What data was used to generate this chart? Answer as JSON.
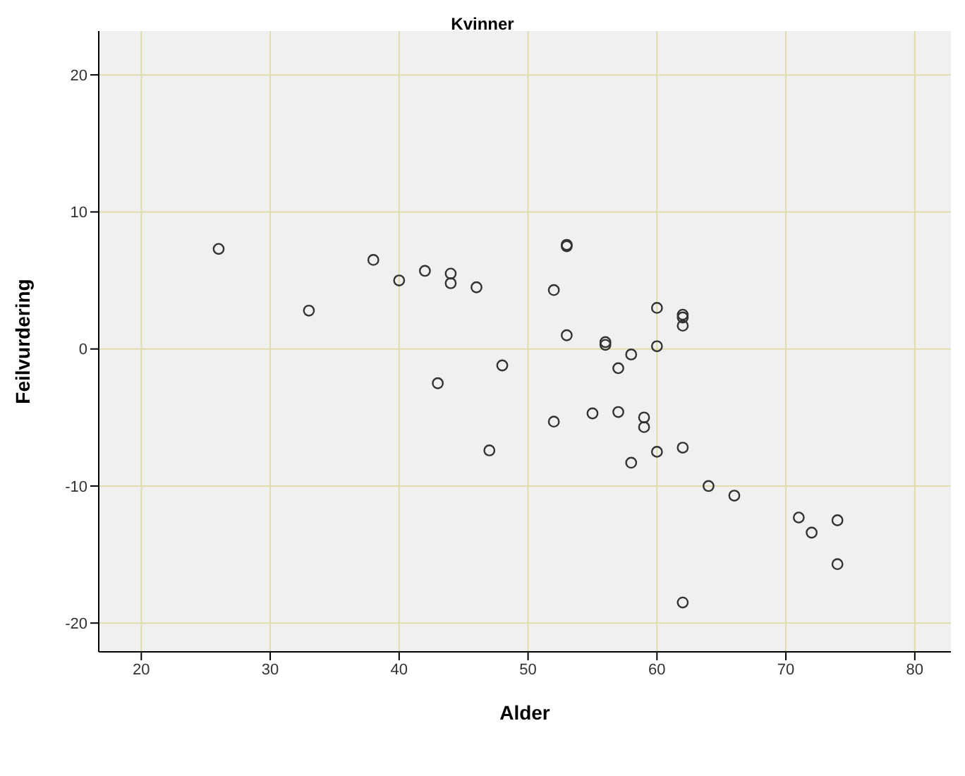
{
  "chart_data": {
    "type": "scatter",
    "title": "Kvinner",
    "xlabel": "Alder",
    "ylabel": "Feilvurdering",
    "x": [
      26,
      33,
      38,
      40,
      42,
      44,
      44,
      46,
      43,
      48,
      47,
      52,
      53,
      53,
      53,
      52,
      55,
      56,
      56,
      57,
      57,
      58,
      59,
      59,
      58,
      60,
      60,
      60,
      62,
      62,
      62,
      62,
      62,
      64,
      66,
      71,
      72,
      74,
      74
    ],
    "values": [
      7.3,
      2.8,
      6.5,
      5.0,
      5.7,
      5.5,
      4.8,
      4.5,
      -2.5,
      -1.2,
      -7.4,
      4.3,
      7.5,
      7.6,
      1.0,
      -5.3,
      -4.7,
      0.5,
      0.3,
      -1.4,
      -4.6,
      -0.4,
      -5.0,
      -5.7,
      -8.3,
      3.0,
      0.2,
      -7.5,
      2.5,
      2.3,
      1.7,
      -7.2,
      -18.5,
      -10.0,
      -10.7,
      -12.3,
      -13.4,
      -12.5,
      -15.7
    ],
    "color": "#333333",
    "marker": "circle",
    "xlim": [
      16.7,
      82.8
    ],
    "xticks": [
      20,
      30,
      40,
      50,
      60,
      70,
      80
    ],
    "ylim": [
      -22.1,
      23.2
    ],
    "yticks": [
      -20,
      -10,
      0,
      10,
      20
    ],
    "grid": true
  }
}
